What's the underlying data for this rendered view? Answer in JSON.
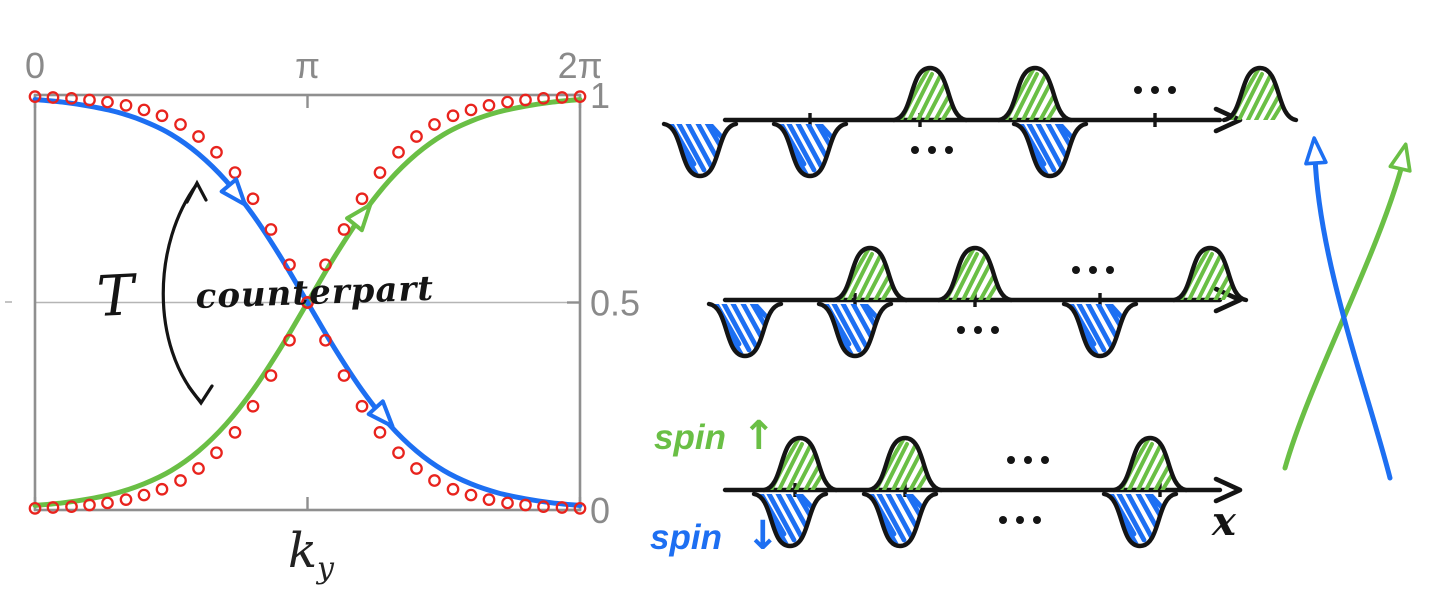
{
  "colors": {
    "green": "#6abf45",
    "blue": "#1d6ff2",
    "red": "#e8231d",
    "gray": "#8a8a8a",
    "black": "#141414"
  },
  "chart": {
    "x_ticks": [
      {
        "label": "0",
        "t": 0
      },
      {
        "label": "π",
        "t": 0.5
      },
      {
        "label": "2π",
        "t": 1
      }
    ],
    "y_ticks": [
      {
        "label": "1",
        "v": 1
      },
      {
        "label": "0.5",
        "v": 0.5
      },
      {
        "label": "0",
        "v": 0
      }
    ],
    "x_label_base": "k",
    "x_label_sub": "y",
    "annotation": {
      "operator": "T",
      "text": "counterpart"
    },
    "curve_arrows": [
      {
        "series": "spin-down",
        "t": 0.37,
        "v": 0.76,
        "angle": 50
      },
      {
        "series": "spin-down",
        "t": 0.64,
        "v": 0.225,
        "angle": 48
      },
      {
        "series": "spin-up",
        "t": 0.6,
        "v": 0.711,
        "angle": -51
      }
    ],
    "chart_data": {
      "type": "line",
      "title": "",
      "xlabel": "k_y",
      "ylabel": "",
      "x_tick_labels": [
        "0",
        "π",
        "2π"
      ],
      "x_unit": "fraction of 2π",
      "ylim": [
        0,
        1
      ],
      "grid": "horizontal line at 0.5 only",
      "x": [
        0,
        0.05,
        0.1,
        0.15,
        0.2,
        0.25,
        0.3,
        0.35,
        0.4,
        0.45,
        0.5,
        0.55,
        0.6,
        0.65,
        0.7,
        0.75,
        0.8,
        0.85,
        0.9,
        0.95,
        1
      ],
      "series": [
        {
          "name": "spin-up band (ascending)",
          "color_key": "green",
          "values": [
            0.011,
            0.017,
            0.027,
            0.041,
            0.063,
            0.095,
            0.142,
            0.206,
            0.289,
            0.389,
            0.5,
            0.611,
            0.711,
            0.794,
            0.858,
            0.905,
            0.937,
            0.959,
            0.973,
            0.983,
            0.989
          ]
        },
        {
          "name": "spin-down band (descending)",
          "color_key": "blue",
          "values": [
            0.989,
            0.983,
            0.973,
            0.959,
            0.937,
            0.905,
            0.858,
            0.794,
            0.711,
            0.611,
            0.5,
            0.389,
            0.289,
            0.206,
            0.142,
            0.095,
            0.063,
            0.041,
            0.027,
            0.017,
            0.011
          ]
        }
      ],
      "scatter": {
        "name": "numerical data (open red circles)",
        "color_key": "red",
        "x": [
          0,
          0.033,
          0.067,
          0.1,
          0.133,
          0.167,
          0.2,
          0.233,
          0.267,
          0.3,
          0.333,
          0.367,
          0.4,
          0.433,
          0.467,
          0.5,
          0.533,
          0.567,
          0.6,
          0.633,
          0.667,
          0.7,
          0.733,
          0.767,
          0.8,
          0.833,
          0.867,
          0.9,
          0.933,
          0.967,
          1
        ],
        "series": [
          {
            "name": "ascending branch",
            "values": [
              0.004,
              0.006,
              0.008,
              0.012,
              0.017,
              0.025,
              0.036,
              0.05,
              0.071,
              0.1,
              0.138,
              0.187,
              0.25,
              0.324,
              0.409,
              0.5,
              0.591,
              0.676,
              0.75,
              0.813,
              0.862,
              0.9,
              0.929,
              0.95,
              0.964,
              0.975,
              0.983,
              0.988,
              0.992,
              0.994,
              0.996
            ]
          },
          {
            "name": "descending branch",
            "values": [
              0.996,
              0.994,
              0.992,
              0.988,
              0.983,
              0.975,
              0.964,
              0.95,
              0.929,
              0.9,
              0.862,
              0.813,
              0.75,
              0.676,
              0.591,
              0.5,
              0.409,
              0.324,
              0.25,
              0.187,
              0.138,
              0.1,
              0.071,
              0.05,
              0.036,
              0.025,
              0.017,
              0.012,
              0.008,
              0.006,
              0.004
            ]
          }
        ]
      }
    }
  },
  "lattice": {
    "x_label": "x",
    "spin_up": {
      "text": "spin",
      "arrow": "↑"
    },
    "spin_down": {
      "text": "spin",
      "arrow": "↓"
    },
    "rows": [
      {
        "axis_y": 120,
        "x1": 105,
        "x2": 600,
        "ticks": [
          190,
          300,
          535
        ],
        "bumps": [
          310,
          415,
          640
        ],
        "bump_dots": 535,
        "wells": [
          80,
          190,
          430
        ],
        "well_dots": 312
      },
      {
        "axis_y": 300,
        "x1": 105,
        "x2": 600,
        "ticks": [
          235,
          355,
          480
        ],
        "bumps": [
          250,
          355,
          590
        ],
        "bump_dots": 473,
        "wells": [
          125,
          235,
          480
        ],
        "well_dots": 358
      },
      {
        "axis_y": 490,
        "x1": 105,
        "x2": 600,
        "ticks": [
          175,
          285,
          540
        ],
        "bumps": [
          180,
          285,
          530
        ],
        "bump_dots": 408,
        "wells": [
          170,
          280,
          520
        ],
        "well_dots": 400
      }
    ]
  }
}
